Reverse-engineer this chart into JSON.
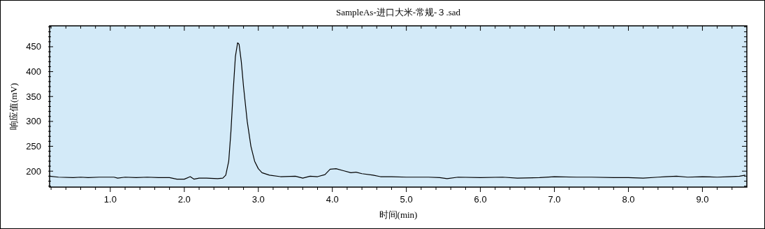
{
  "chart_data": {
    "type": "line",
    "title": "SampleAs-进口大米-常规-３.sad",
    "xlabel": "时间(min)",
    "ylabel": "响应值(mV)",
    "x": [
      0.18,
      0.3,
      0.5,
      0.6,
      0.7,
      0.85,
      1.0,
      1.05,
      1.1,
      1.2,
      1.35,
      1.5,
      1.65,
      1.8,
      1.9,
      2.0,
      2.08,
      2.13,
      2.2,
      2.3,
      2.45,
      2.52,
      2.56,
      2.6,
      2.63,
      2.66,
      2.69,
      2.72,
      2.74,
      2.77,
      2.8,
      2.85,
      2.9,
      2.95,
      3.0,
      3.05,
      3.15,
      3.3,
      3.5,
      3.6,
      3.7,
      3.8,
      3.9,
      3.97,
      4.05,
      4.15,
      4.25,
      4.32,
      4.4,
      4.55,
      4.65,
      4.8,
      5.0,
      5.3,
      5.45,
      5.55,
      5.7,
      6.0,
      6.3,
      6.5,
      6.8,
      7.0,
      7.3,
      7.5,
      7.8,
      8.0,
      8.2,
      8.4,
      8.5,
      8.65,
      8.8,
      9.0,
      9.2,
      9.35,
      9.5,
      9.58
    ],
    "values": [
      190,
      188,
      187,
      188,
      187,
      188,
      188,
      188,
      186,
      188,
      187,
      188,
      187,
      187,
      184,
      184,
      189,
      184,
      186,
      186,
      185,
      186,
      192,
      220,
      280,
      360,
      430,
      458,
      455,
      420,
      370,
      300,
      250,
      220,
      205,
      197,
      192,
      189,
      190,
      186,
      190,
      189,
      193,
      204,
      205,
      201,
      197,
      198,
      195,
      192,
      189,
      189,
      188,
      188,
      187,
      185,
      188,
      187,
      188,
      186,
      187,
      189,
      188,
      188,
      187,
      187,
      186,
      188,
      189,
      190,
      188,
      189,
      188,
      189,
      190,
      192
    ],
    "color": "#000000",
    "xlim": [
      0.18,
      9.6
    ],
    "ylim": [
      168,
      492
    ],
    "xticks": [
      {
        "value": 0.2,
        "label": null
      },
      {
        "value": 0.4,
        "label": null
      },
      {
        "value": 0.6,
        "label": null
      },
      {
        "value": 0.8,
        "label": null
      },
      {
        "value": 1,
        "label": "1.0"
      },
      {
        "value": 1.2,
        "label": null
      },
      {
        "value": 1.4,
        "label": null
      },
      {
        "value": 1.6,
        "label": null
      },
      {
        "value": 1.8,
        "label": null
      },
      {
        "value": 2,
        "label": "2.0"
      },
      {
        "value": 2.2,
        "label": null
      },
      {
        "value": 2.4,
        "label": null
      },
      {
        "value": 2.6,
        "label": null
      },
      {
        "value": 2.8,
        "label": null
      },
      {
        "value": 3,
        "label": "3.0"
      },
      {
        "value": 3.2,
        "label": null
      },
      {
        "value": 3.4,
        "label": null
      },
      {
        "value": 3.6,
        "label": null
      },
      {
        "value": 3.8,
        "label": null
      },
      {
        "value": 4,
        "label": "4.0"
      },
      {
        "value": 4.2,
        "label": null
      },
      {
        "value": 4.4,
        "label": null
      },
      {
        "value": 4.6,
        "label": null
      },
      {
        "value": 4.8,
        "label": null
      },
      {
        "value": 5,
        "label": "5.0"
      },
      {
        "value": 5.2,
        "label": null
      },
      {
        "value": 5.4,
        "label": null
      },
      {
        "value": 5.6,
        "label": null
      },
      {
        "value": 5.8,
        "label": null
      },
      {
        "value": 6,
        "label": "6.0"
      },
      {
        "value": 6.2,
        "label": null
      },
      {
        "value": 6.4,
        "label": null
      },
      {
        "value": 6.6,
        "label": null
      },
      {
        "value": 6.8,
        "label": null
      },
      {
        "value": 7,
        "label": "7.0"
      },
      {
        "value": 7.2,
        "label": null
      },
      {
        "value": 7.4,
        "label": null
      },
      {
        "value": 7.6,
        "label": null
      },
      {
        "value": 7.8,
        "label": null
      },
      {
        "value": 8,
        "label": "8.0"
      },
      {
        "value": 8.2,
        "label": null
      },
      {
        "value": 8.4,
        "label": null
      },
      {
        "value": 8.6,
        "label": null
      },
      {
        "value": 8.8,
        "label": null
      },
      {
        "value": 9,
        "label": "9.0"
      },
      {
        "value": 9.2,
        "label": null
      },
      {
        "value": 9.4,
        "label": null
      }
    ],
    "yticks": [
      {
        "value": 170,
        "label": null
      },
      {
        "value": 180,
        "label": null
      },
      {
        "value": 190,
        "label": null
      },
      200,
      {
        "value": 210,
        "label": null
      },
      {
        "value": 220,
        "label": null
      },
      {
        "value": 230,
        "label": null
      },
      {
        "value": 240,
        "label": null
      },
      250,
      {
        "value": 260,
        "label": null
      },
      {
        "value": 270,
        "label": null
      },
      {
        "value": 280,
        "label": null
      },
      {
        "value": 290,
        "label": null
      },
      300,
      {
        "value": 310,
        "label": null
      },
      {
        "value": 320,
        "label": null
      },
      {
        "value": 330,
        "label": null
      },
      {
        "value": 340,
        "label": null
      },
      350,
      {
        "value": 360,
        "label": null
      },
      {
        "value": 370,
        "label": null
      },
      {
        "value": 380,
        "label": null
      },
      {
        "value": 390,
        "label": null
      },
      400,
      {
        "value": 410,
        "label": null
      },
      {
        "value": 420,
        "label": null
      },
      {
        "value": 430,
        "label": null
      },
      {
        "value": 440,
        "label": null
      },
      450,
      {
        "value": 460,
        "label": null
      },
      {
        "value": 470,
        "label": null
      },
      {
        "value": 480,
        "label": null
      },
      {
        "value": 490,
        "label": null
      }
    ]
  }
}
